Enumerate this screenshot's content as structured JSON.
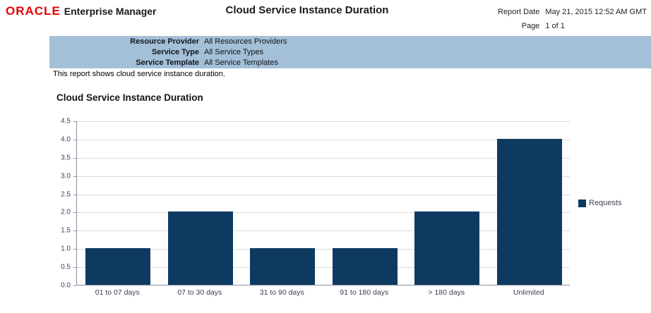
{
  "header": {
    "logo_oracle": "ORACLE",
    "logo_suffix": "Enterprise Manager",
    "title": "Cloud Service Instance Duration",
    "report_date_label": "Report Date",
    "report_date_value": "May 21, 2015 12:52 AM GMT",
    "page_label": "Page",
    "page_value": "1 of 1"
  },
  "parameters": {
    "rows": [
      {
        "label": "Resource Provider",
        "value": "All Resources Providers"
      },
      {
        "label": "Service Type",
        "value": "All Service Types"
      },
      {
        "label": "Service Template",
        "value": "All Service Templates"
      }
    ]
  },
  "description": "This report shows cloud service instance duration.",
  "section_title": "Cloud Service Instance Duration",
  "chart_data": {
    "type": "bar",
    "title": "Cloud Service Instance Duration",
    "categories": [
      "01 to 07 days",
      "07 to 30 days",
      "31 to 90 days",
      "91 to 180 days",
      "> 180 days",
      "Unlimited"
    ],
    "series": [
      {
        "name": "Requests",
        "values": [
          1,
          2,
          1,
          1,
          2,
          4
        ]
      }
    ],
    "xlabel": "",
    "ylabel": "",
    "ylim": [
      0,
      4.5
    ],
    "ytick_step": 0.5,
    "grid": true,
    "legend_position": "right"
  },
  "colors": {
    "oracle_red": "#e50000",
    "bar": "#0e3a62",
    "band_bg": "#a3c0d8",
    "gridline": "#dadade",
    "axis_line": "#8b90a0",
    "tick_label_y": "#3e4456",
    "tick_label_x": "#3a4052"
  }
}
